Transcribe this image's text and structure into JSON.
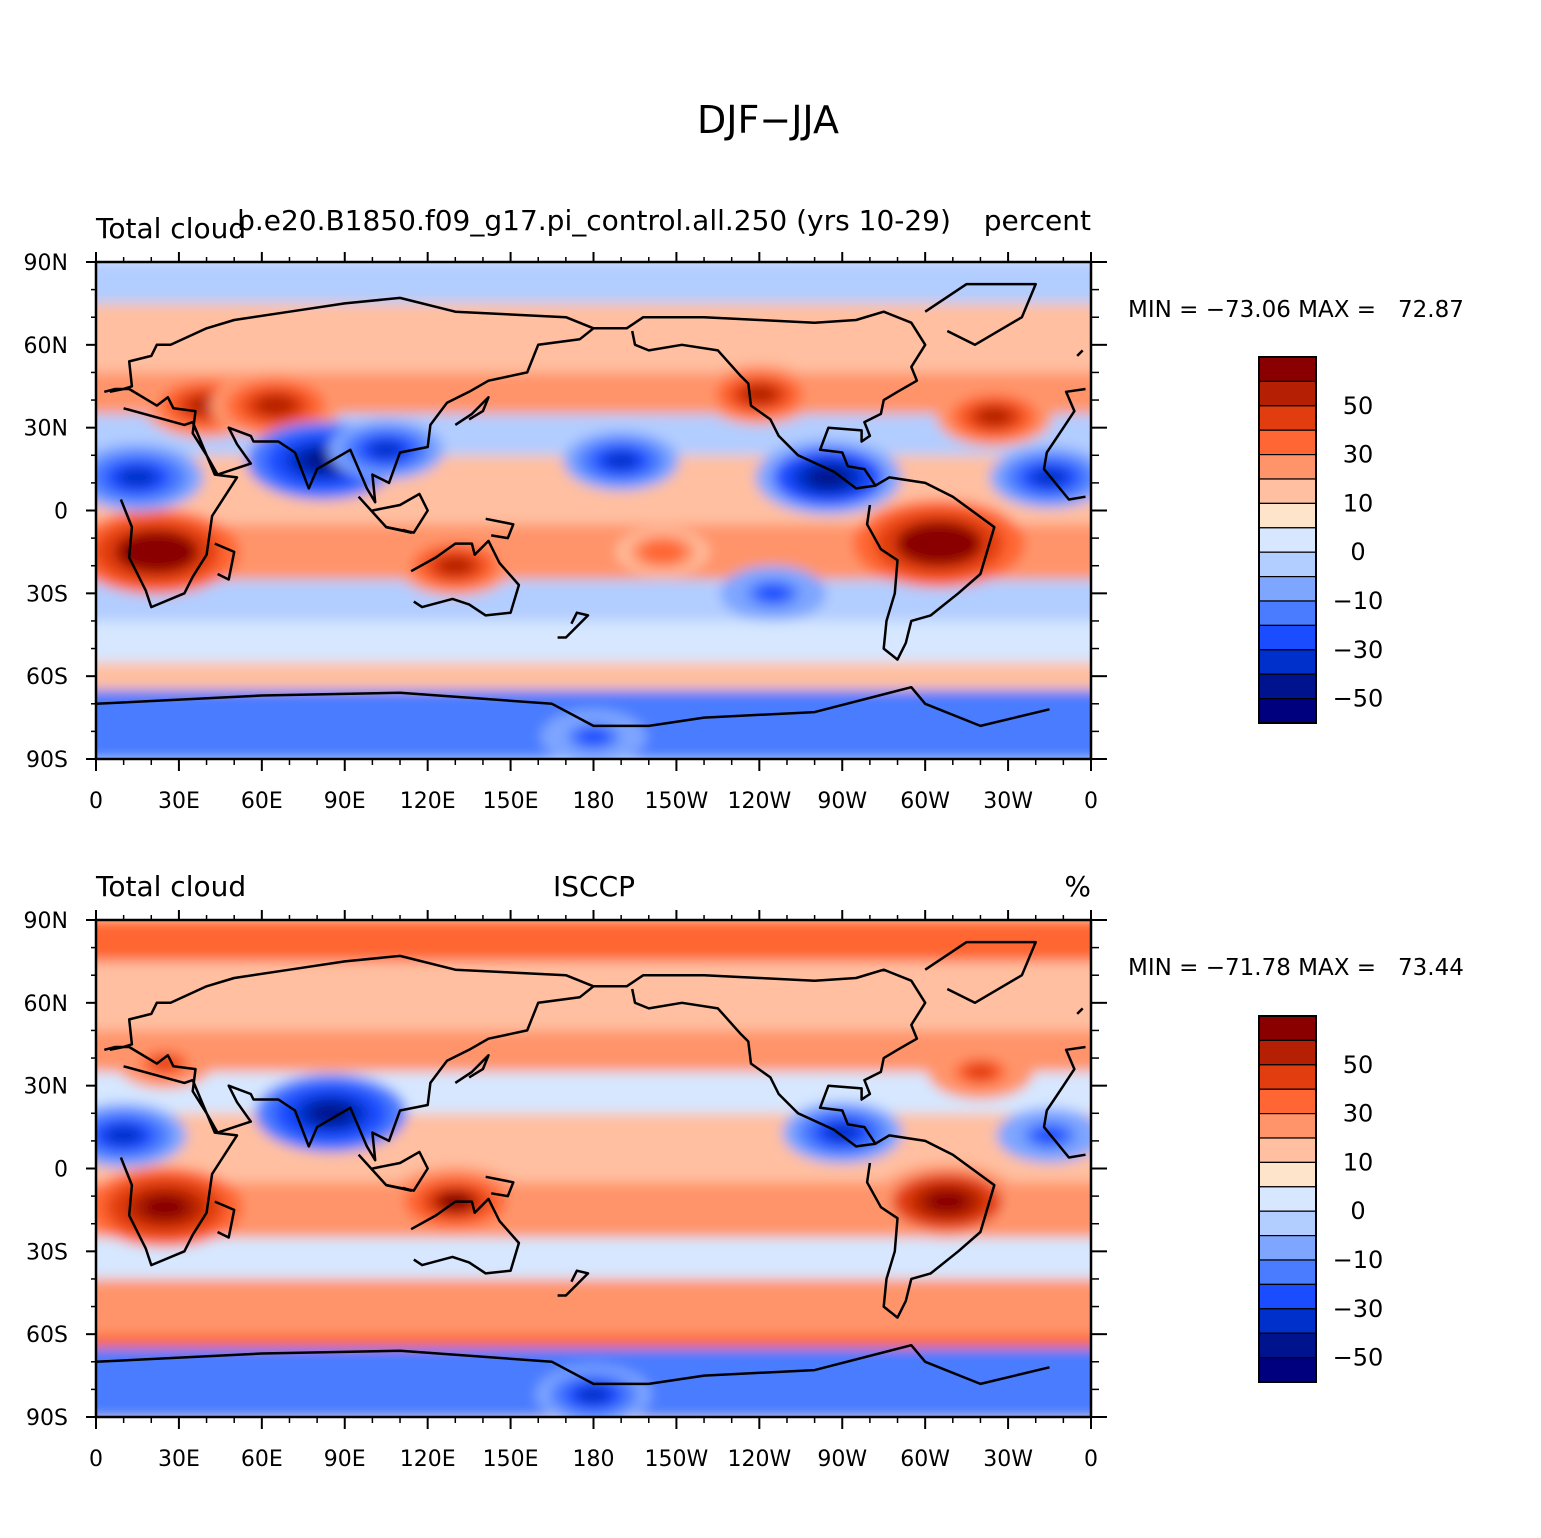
{
  "figure": {
    "title": "DJF−JJA"
  },
  "x_ticks": [
    "0",
    "30E",
    "60E",
    "90E",
    "120E",
    "150E",
    "180",
    "150W",
    "120W",
    "90W",
    "60W",
    "30W",
    "0"
  ],
  "y_ticks": [
    "90N",
    "60N",
    "30N",
    "0",
    "30S",
    "60S",
    "90S"
  ],
  "colorbar": {
    "colors": [
      "#00007f",
      "#00138f",
      "#0030cc",
      "#1a4dff",
      "#4a7cff",
      "#7ea6ff",
      "#b2cdff",
      "#d6e7ff",
      "#ffe4cc",
      "#ffbfa0",
      "#ff946b",
      "#ff6633",
      "#e23d0f",
      "#b52005",
      "#8a0000"
    ],
    "labels": [
      "−50",
      "−30",
      "−10",
      "0",
      "10",
      "30",
      "50"
    ]
  },
  "panels": [
    {
      "left_title": "Total cloud",
      "center_title": "b.e20.B1850.f09_g17.pi_control.all.250 (yrs 10-29)",
      "right_title": "percent",
      "min_max": "MIN = −73.06 MAX =   72.87"
    },
    {
      "left_title": "Total cloud",
      "center_title": "ISCCP",
      "right_title": "%",
      "min_max": "MIN = −71.78 MAX =   73.44"
    }
  ],
  "chart_data": [
    {
      "type": "heatmap",
      "title": "DJF−JJA",
      "left_title": "Total cloud",
      "center_title": "b.e20.B1850.f09_g17.pi_control.all.250 (yrs 10-29)",
      "units": "percent",
      "min": -73.06,
      "max": 72.87,
      "lon_range": [
        0,
        360
      ],
      "lat_range": [
        -90,
        90
      ],
      "levels": [
        -60,
        -50,
        -40,
        -30,
        -20,
        -10,
        -5,
        0,
        5,
        10,
        20,
        30,
        40,
        50,
        60
      ],
      "features": [
        {
          "name": "southern Africa",
          "lon": 22,
          "lat": -15,
          "value": 65
        },
        {
          "name": "Amazon",
          "lon": 305,
          "lat": -12,
          "value": 68
        },
        {
          "name": "Mediterranean / Middle East",
          "lon": 40,
          "lat": 38,
          "value": 45
        },
        {
          "name": "Central Asia",
          "lon": 65,
          "lat": 38,
          "value": 48
        },
        {
          "name": "North Pacific NE",
          "lon": 240,
          "lat": 42,
          "value": 40
        },
        {
          "name": "North Atlantic",
          "lon": 325,
          "lat": 34,
          "value": 40
        },
        {
          "name": "Northern Australia",
          "lon": 130,
          "lat": -20,
          "value": 40
        },
        {
          "name": "Central S Pacific",
          "lon": 205,
          "lat": -15,
          "value": 28
        },
        {
          "name": "India / Bay of Bengal",
          "lon": 82,
          "lat": 18,
          "value": -58
        },
        {
          "name": "SE Asia",
          "lon": 105,
          "lat": 22,
          "value": -40
        },
        {
          "name": "Central America / E Pacific",
          "lon": 265,
          "lat": 12,
          "value": -55
        },
        {
          "name": "West Africa / Sahel",
          "lon": 15,
          "lat": 12,
          "value": -48
        },
        {
          "name": "Tropical N Atlantic",
          "lon": 345,
          "lat": 12,
          "value": -42
        },
        {
          "name": "North Pacific trough",
          "lon": 190,
          "lat": 18,
          "value": -40
        },
        {
          "name": "South Pacific",
          "lon": 245,
          "lat": -30,
          "value": -35
        },
        {
          "name": "Antarctica",
          "lon": 180,
          "lat": -82,
          "value": -35
        }
      ]
    },
    {
      "type": "heatmap",
      "title": "DJF−JJA",
      "left_title": "Total cloud",
      "center_title": "ISCCP",
      "units": "%",
      "min": -71.78,
      "max": 73.44,
      "lon_range": [
        0,
        360
      ],
      "lat_range": [
        -90,
        90
      ],
      "levels": [
        -60,
        -50,
        -40,
        -30,
        -20,
        -10,
        -5,
        0,
        5,
        10,
        20,
        30,
        40,
        50,
        60
      ],
      "features": [
        {
          "name": "southern Africa",
          "lon": 25,
          "lat": -14,
          "value": 60
        },
        {
          "name": "Amazon",
          "lon": 308,
          "lat": -12,
          "value": 55
        },
        {
          "name": "Northern Australia",
          "lon": 130,
          "lat": -12,
          "value": 50
        },
        {
          "name": "North Atlantic",
          "lon": 320,
          "lat": 35,
          "value": 35
        },
        {
          "name": "Mediterranean",
          "lon": 25,
          "lat": 38,
          "value": 30
        },
        {
          "name": "India / Bay of Bengal",
          "lon": 85,
          "lat": 20,
          "value": -58
        },
        {
          "name": "West Africa",
          "lon": 10,
          "lat": 12,
          "value": -45
        },
        {
          "name": "Central America",
          "lon": 270,
          "lat": 13,
          "value": -42
        },
        {
          "name": "Tropical N Atlantic",
          "lon": 345,
          "lat": 12,
          "value": -35
        },
        {
          "name": "Antarctica",
          "lon": 180,
          "lat": -82,
          "value": -40
        }
      ]
    }
  ]
}
